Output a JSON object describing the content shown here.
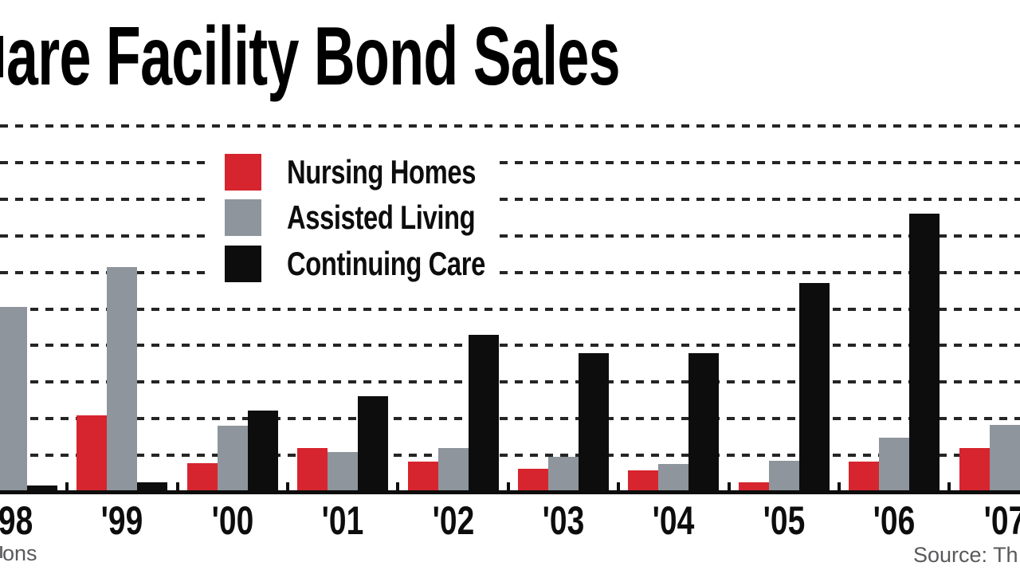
{
  "title": {
    "text": "are Facility Bond Sales"
  },
  "footer": {
    "left_text": "ons",
    "right_text": "Source: Th"
  },
  "colors": {
    "nursing_homes_red": "#d6252e",
    "assisted_living_gray": "#8e959c",
    "continuing_care_black": "#0d0d0d",
    "gridline": "#252525",
    "footer_gray": "#58595b",
    "background": "#ffffff"
  },
  "chart_data": {
    "type": "bar",
    "title": "are Facility Bond Sales",
    "xlabel": "",
    "ylabel": "",
    "categories": [
      "'98",
      "'99",
      "'00",
      "'01",
      "'02",
      "'03",
      "'04",
      "'05",
      "'06",
      "'07"
    ],
    "series": [
      {
        "name": "Nursing Homes",
        "color": "#d6252e",
        "values": [
          null,
          2.1,
          0.78,
          1.2,
          0.82,
          0.64,
          0.58,
          0.27,
          0.82,
          1.2
        ]
      },
      {
        "name": "Assisted Living",
        "color": "#8e959c",
        "values": [
          5.05,
          6.15,
          1.8,
          1.1,
          1.2,
          0.96,
          0.77,
          0.86,
          1.49,
          1.82
        ]
      },
      {
        "name": "Continuing Care",
        "color": "#0d0d0d",
        "values": [
          0.18,
          0.27,
          2.22,
          2.62,
          4.3,
          3.8,
          3.8,
          5.7,
          7.6,
          null
        ]
      }
    ],
    "value_units": "gridline intervals (y-axis value labels are cropped out of the frame; unit text cropped to 'ons')",
    "ylim": [
      0,
      10
    ],
    "grid": "horizontal dashed lines, 10 lines",
    "legend_position": "upper left area on white box",
    "notes": "left edge crops '98 nursing-homes bar and title's first letters; right edge crops '07 continuing-care bar and source text"
  }
}
